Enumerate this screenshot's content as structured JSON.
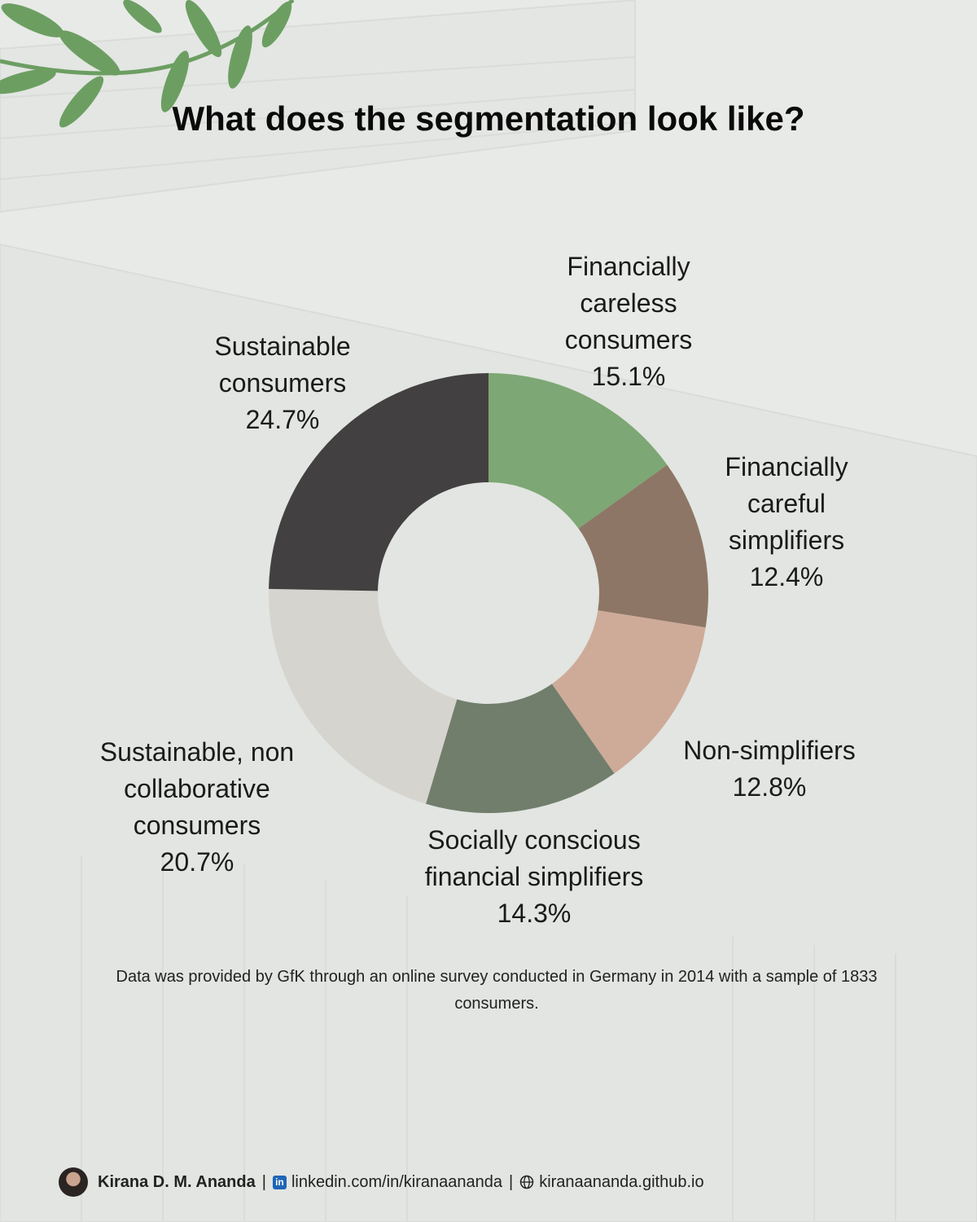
{
  "title": "What does the segmentation look like?",
  "chart_data": {
    "type": "pie",
    "donut": true,
    "slices": [
      {
        "label": "Financially\ncareless\nconsumers",
        "value": 15.1,
        "value_label": "15.1%",
        "color": "#7da774"
      },
      {
        "label": "Financially\ncareful\nsimplifiers",
        "value": 12.4,
        "value_label": "12.4%",
        "color": "#8e7666"
      },
      {
        "label": "Non-simplifiers",
        "value": 12.8,
        "value_label": "12.8%",
        "color": "#ceab98"
      },
      {
        "label": "Socially conscious\nfinancial simplifiers",
        "value": 14.3,
        "value_label": "14.3%",
        "color": "#717e6c"
      },
      {
        "label": "Sustainable, non\ncollaborative\nconsumers",
        "value": 20.7,
        "value_label": "20.7%",
        "color": "#d6d4ce"
      },
      {
        "label": "Sustainable\nconsumers",
        "value": 24.7,
        "value_label": "24.7%",
        "color": "#434041"
      }
    ]
  },
  "note": "Data was provided by GfK through an online survey conducted in Germany in 2014 with a sample of 1833 consumers.",
  "footer": {
    "author": "Kirana D. M. Ananda",
    "separator": "|",
    "linkedin": "linkedin.com/in/kiranaananda",
    "website": "kiranaananda.github.io",
    "linkedin_icon": "in"
  }
}
